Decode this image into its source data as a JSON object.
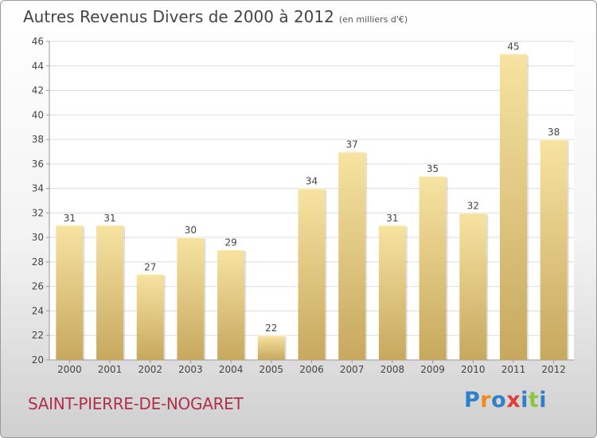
{
  "title": "Autres Revenus Divers de 2000 à 2012",
  "unit_note": "(en milliers d'€)",
  "commune": "SAINT-PIERRE-DE-NOGARET",
  "logo": {
    "text": "Proxiti",
    "letters": [
      {
        "ch": "P",
        "color": "#2f80c8"
      },
      {
        "ch": "r",
        "color": "#f08a1c"
      },
      {
        "ch": "o",
        "color": "#2f80c8"
      },
      {
        "ch": "x",
        "color": "#e03c3c"
      },
      {
        "ch": "i",
        "color": "#2f80c8"
      },
      {
        "ch": "t",
        "color": "#8cc63f"
      },
      {
        "ch": "i",
        "color": "#2f80c8"
      }
    ]
  },
  "colors": {
    "bar_top": "#f7e3a2",
    "bar_bottom": "#c7a85e",
    "grid": "#dddddd",
    "axis": "#999999",
    "text": "#444444"
  },
  "chart_data": {
    "type": "bar",
    "categories": [
      "2000",
      "2001",
      "2002",
      "2003",
      "2004",
      "2005",
      "2006",
      "2007",
      "2008",
      "2009",
      "2010",
      "2011",
      "2012"
    ],
    "values": [
      31,
      31,
      27,
      30,
      29,
      22,
      34,
      37,
      31,
      35,
      32,
      45,
      38
    ],
    "ylim": [
      20,
      46
    ],
    "yticks": [
      20,
      22,
      24,
      26,
      28,
      30,
      32,
      34,
      36,
      38,
      40,
      42,
      44,
      46
    ],
    "grid": true,
    "legend": "none"
  }
}
